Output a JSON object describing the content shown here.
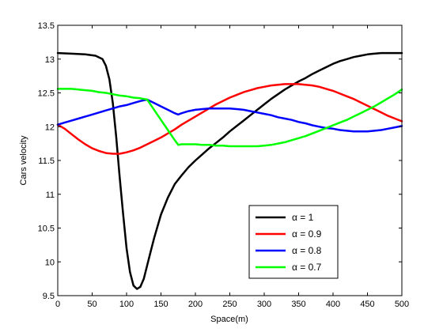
{
  "chart_data": {
    "type": "line",
    "title": "",
    "xlabel": "Space(m)",
    "ylabel": "Cars velocity",
    "xlim": [
      0,
      500
    ],
    "ylim": [
      9.5,
      13.5
    ],
    "xticks": [
      0,
      50,
      100,
      150,
      200,
      250,
      300,
      350,
      400,
      450,
      500
    ],
    "yticks": [
      9.5,
      10,
      10.5,
      11,
      11.5,
      12,
      12.5,
      13,
      13.5
    ],
    "xtick_labels": [
      "0",
      "50",
      "100",
      "150",
      "200",
      "250",
      "300",
      "350",
      "400",
      "450",
      "500"
    ],
    "ytick_labels": [
      "9.5",
      "10",
      "10.5",
      "11",
      "11.5",
      "12",
      "12.5",
      "13",
      "13.5"
    ],
    "grid": false,
    "legend_position": "lower-right",
    "series": [
      {
        "name": "α = 1",
        "color": "#000000",
        "x": [
          0,
          20,
          40,
          55,
          65,
          70,
          75,
          80,
          85,
          90,
          95,
          100,
          105,
          110,
          115,
          120,
          125,
          130,
          135,
          140,
          150,
          160,
          170,
          180,
          190,
          200,
          210,
          220,
          230,
          240,
          250,
          260,
          270,
          280,
          290,
          300,
          310,
          320,
          330,
          340,
          350,
          360,
          370,
          380,
          390,
          400,
          410,
          420,
          430,
          440,
          450,
          460,
          470,
          480,
          490,
          500
        ],
        "y": [
          13.09,
          13.08,
          13.07,
          13.05,
          13.0,
          12.9,
          12.7,
          12.35,
          11.85,
          11.25,
          10.7,
          10.2,
          9.85,
          9.65,
          9.6,
          9.63,
          9.75,
          9.95,
          10.15,
          10.35,
          10.7,
          10.95,
          11.15,
          11.28,
          11.4,
          11.5,
          11.59,
          11.68,
          11.76,
          11.84,
          11.93,
          12.01,
          12.09,
          12.17,
          12.25,
          12.33,
          12.41,
          12.48,
          12.55,
          12.61,
          12.67,
          12.72,
          12.78,
          12.83,
          12.88,
          12.93,
          12.97,
          13.0,
          13.03,
          13.05,
          13.07,
          13.08,
          13.09,
          13.09,
          13.09,
          13.09
        ]
      },
      {
        "name": "α = 0.9",
        "color": "#ff0000",
        "x": [
          0,
          10,
          20,
          30,
          40,
          50,
          60,
          70,
          80,
          90,
          100,
          110,
          120,
          130,
          140,
          150,
          160,
          170,
          180,
          190,
          200,
          210,
          220,
          230,
          240,
          250,
          260,
          270,
          280,
          290,
          300,
          310,
          320,
          330,
          340,
          350,
          360,
          370,
          380,
          390,
          400,
          410,
          420,
          430,
          440,
          450,
          460,
          470,
          480,
          490,
          500
        ],
        "y": [
          12.03,
          11.97,
          11.89,
          11.81,
          11.74,
          11.68,
          11.64,
          11.61,
          11.6,
          11.6,
          11.62,
          11.65,
          11.69,
          11.74,
          11.79,
          11.84,
          11.9,
          11.96,
          12.03,
          12.09,
          12.15,
          12.21,
          12.27,
          12.33,
          12.38,
          12.43,
          12.47,
          12.51,
          12.54,
          12.57,
          12.59,
          12.61,
          12.62,
          12.63,
          12.63,
          12.63,
          12.62,
          12.61,
          12.59,
          12.56,
          12.53,
          12.49,
          12.45,
          12.41,
          12.36,
          12.31,
          12.26,
          12.21,
          12.16,
          12.12,
          12.08
        ]
      },
      {
        "name": "α = 0.8",
        "color": "#0000ff",
        "x": [
          0,
          10,
          20,
          30,
          40,
          50,
          60,
          70,
          80,
          90,
          100,
          110,
          120,
          130,
          140,
          150,
          160,
          170,
          175,
          180,
          190,
          200,
          210,
          220,
          230,
          240,
          250,
          260,
          270,
          280,
          290,
          300,
          310,
          320,
          330,
          340,
          350,
          360,
          370,
          380,
          390,
          400,
          410,
          420,
          430,
          440,
          450,
          460,
          470,
          480,
          490,
          500
        ],
        "y": [
          12.03,
          12.06,
          12.09,
          12.12,
          12.15,
          12.18,
          12.21,
          12.24,
          12.27,
          12.3,
          12.32,
          12.35,
          12.38,
          12.4,
          12.35,
          12.3,
          12.25,
          12.2,
          12.18,
          12.2,
          12.23,
          12.25,
          12.26,
          12.27,
          12.27,
          12.27,
          12.27,
          12.26,
          12.25,
          12.23,
          12.21,
          12.19,
          12.17,
          12.14,
          12.12,
          12.1,
          12.07,
          12.05,
          12.02,
          12.0,
          11.98,
          11.97,
          11.95,
          11.94,
          11.93,
          11.93,
          11.93,
          11.94,
          11.95,
          11.97,
          11.99,
          12.01
        ]
      },
      {
        "name": "α = 0.7",
        "color": "#00ff00",
        "x": [
          0,
          10,
          20,
          30,
          40,
          50,
          60,
          70,
          80,
          90,
          100,
          110,
          120,
          130,
          140,
          150,
          160,
          170,
          175,
          180,
          190,
          200,
          210,
          220,
          230,
          240,
          250,
          260,
          270,
          280,
          290,
          300,
          310,
          320,
          330,
          340,
          350,
          360,
          370,
          380,
          390,
          400,
          410,
          420,
          430,
          440,
          450,
          460,
          470,
          480,
          490,
          500
        ],
        "y": [
          12.56,
          12.56,
          12.56,
          12.55,
          12.54,
          12.53,
          12.51,
          12.5,
          12.48,
          12.46,
          12.45,
          12.43,
          12.42,
          12.4,
          12.25,
          12.1,
          11.95,
          11.8,
          11.73,
          11.74,
          11.74,
          11.74,
          11.73,
          11.73,
          11.72,
          11.72,
          11.71,
          11.71,
          11.71,
          11.71,
          11.71,
          11.72,
          11.73,
          11.75,
          11.77,
          11.8,
          11.83,
          11.86,
          11.9,
          11.94,
          11.98,
          12.02,
          12.06,
          12.1,
          12.15,
          12.2,
          12.25,
          12.3,
          12.36,
          12.42,
          12.48,
          12.55
        ]
      }
    ]
  }
}
